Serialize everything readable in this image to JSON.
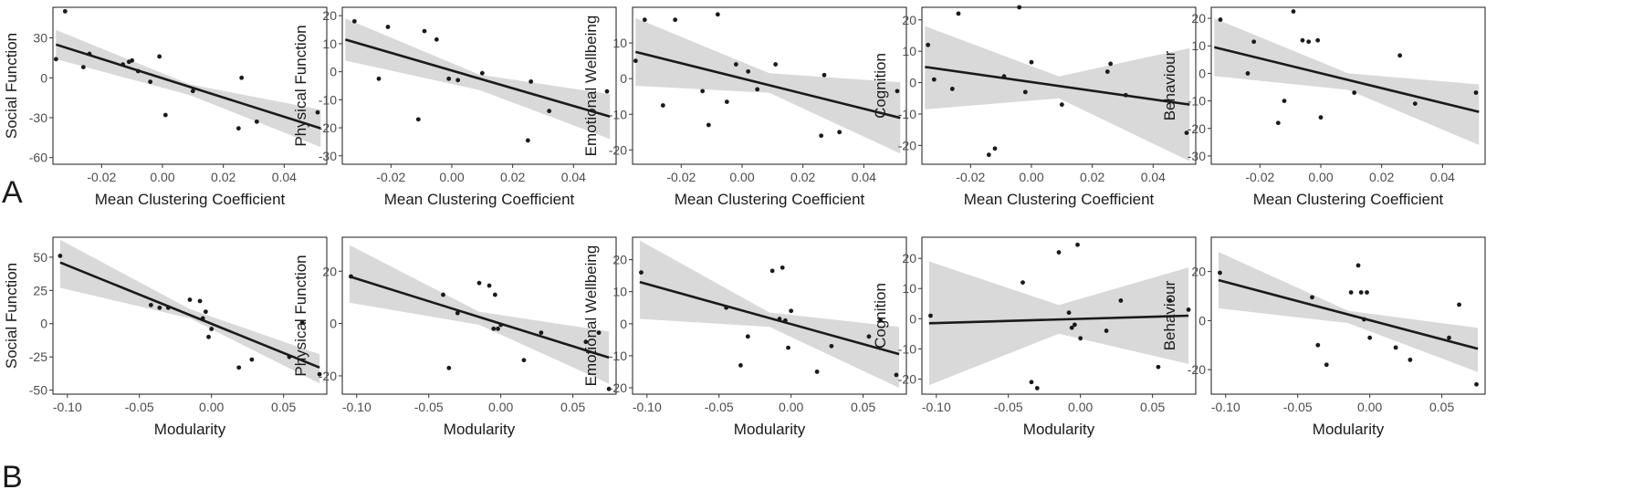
{
  "panel_labels": [
    "A",
    "B"
  ],
  "chart_data": [
    {
      "type": "scatter",
      "row": 0,
      "col": 0,
      "xlabel": "Mean Clustering Coefficient",
      "ylabel": "Social Function",
      "xlim": [
        -0.036,
        0.054
      ],
      "ylim": [
        -65,
        53
      ],
      "xticks": [
        -0.02,
        0,
        0.02,
        0.04
      ],
      "xtick_labels": [
        "-0.02",
        "0.00",
        "0.02",
        "0.04"
      ],
      "yticks": [
        -60,
        -30,
        0,
        30
      ],
      "ytick_labels": [
        "-60",
        "-30",
        "0",
        "30"
      ],
      "fit": {
        "x": [
          -0.035,
          0.052
        ],
        "y": [
          25,
          -38
        ]
      },
      "band": {
        "x": [
          -0.035,
          0.009,
          0.052
        ],
        "upper": [
          36,
          -5,
          -24
        ],
        "lower": [
          14,
          -13,
          -52
        ]
      },
      "points": {
        "x": [
          -0.035,
          -0.032,
          -0.026,
          -0.024,
          -0.013,
          -0.011,
          -0.01,
          -0.008,
          -0.004,
          -0.001,
          0.001,
          0.01,
          0.025,
          0.026,
          0.031,
          0.051
        ],
        "y": [
          14,
          50,
          8,
          18,
          10,
          12,
          13,
          5,
          -3,
          16,
          -28,
          -10,
          -38,
          0,
          -33,
          -26
        ]
      }
    },
    {
      "type": "scatter",
      "row": 0,
      "col": 1,
      "xlabel": "Mean Clustering Coefficient",
      "ylabel": "Physical Function",
      "xlim": [
        -0.036,
        0.054
      ],
      "ylim": [
        -33,
        23
      ],
      "xticks": [
        -0.02,
        0,
        0.02,
        0.04
      ],
      "xtick_labels": [
        "-0.02",
        "0.00",
        "0.02",
        "0.04"
      ],
      "yticks": [
        -30,
        -20,
        -10,
        0,
        10,
        20
      ],
      "ytick_labels": [
        "-30",
        "-20",
        "-10",
        "0",
        "10",
        "20"
      ],
      "fit": {
        "x": [
          -0.035,
          0.052
        ],
        "y": [
          11.5,
          -16
        ]
      },
      "band": {
        "x": [
          -0.035,
          0.009,
          0.052
        ],
        "upper": [
          19,
          -1,
          -8
        ],
        "lower": [
          4,
          -6.5,
          -24
        ]
      },
      "points": {
        "x": [
          -0.032,
          -0.024,
          -0.021,
          -0.011,
          -0.009,
          -0.005,
          -0.001,
          0.002,
          0.01,
          0.025,
          0.026,
          0.032,
          0.051
        ],
        "y": [
          18,
          -2.5,
          16,
          -17,
          14.5,
          11.5,
          -2.5,
          -3,
          -0.5,
          -24.5,
          -3.5,
          -14,
          -7
        ]
      }
    },
    {
      "type": "scatter",
      "row": 0,
      "col": 2,
      "xlabel": "Mean Clustering Coefficient",
      "ylabel": "Emotional Wellbeing",
      "xlim": [
        -0.036,
        0.054
      ],
      "ylim": [
        -24,
        20
      ],
      "xticks": [
        -0.02,
        0,
        0.02,
        0.04
      ],
      "xtick_labels": [
        "-0.02",
        "0.00",
        "0.02",
        "0.04"
      ],
      "yticks": [
        -20,
        -10,
        0,
        10
      ],
      "ytick_labels": [
        "-20",
        "-10",
        "0",
        "10"
      ],
      "fit": {
        "x": [
          -0.035,
          0.052
        ],
        "y": [
          7.5,
          -11
        ]
      },
      "band": {
        "x": [
          -0.035,
          0.009,
          0.052
        ],
        "upper": [
          17,
          1.5,
          -1
        ],
        "lower": [
          -2,
          -4,
          -21
        ]
      },
      "points": {
        "x": [
          -0.035,
          -0.032,
          -0.026,
          -0.022,
          -0.013,
          -0.011,
          -0.008,
          -0.005,
          -0.002,
          0.002,
          0.005,
          0.011,
          0.026,
          0.027,
          0.032,
          0.051
        ],
        "y": [
          5,
          16.5,
          -7.5,
          16.5,
          -3.5,
          -13,
          18,
          -6.5,
          4,
          2,
          -3,
          4,
          -16,
          1,
          -15,
          -3.5
        ]
      }
    },
    {
      "type": "scatter",
      "row": 0,
      "col": 3,
      "xlabel": "Mean Clustering Coefficient",
      "ylabel": "Cognition",
      "xlim": [
        -0.036,
        0.054
      ],
      "ylim": [
        -26,
        24
      ],
      "xticks": [
        -0.02,
        0,
        0.02,
        0.04
      ],
      "xtick_labels": [
        "-0.02",
        "0.00",
        "0.02",
        "0.04"
      ],
      "yticks": [
        -20,
        -10,
        0,
        10,
        20
      ],
      "ytick_labels": [
        "-20",
        "-10",
        "0",
        "10",
        "20"
      ],
      "fit": {
        "x": [
          -0.035,
          0.052
        ],
        "y": [
          5,
          -7
        ]
      },
      "band": {
        "x": [
          -0.035,
          0.009,
          0.052
        ],
        "upper": [
          18,
          2,
          11
        ],
        "lower": [
          -8.5,
          -5,
          -25
        ]
      },
      "points": {
        "x": [
          -0.034,
          -0.032,
          -0.026,
          -0.024,
          -0.014,
          -0.012,
          -0.009,
          -0.004,
          -0.002,
          0.0,
          0.01,
          0.025,
          0.026,
          0.031,
          0.051
        ],
        "y": [
          12,
          1,
          -2,
          22,
          -23,
          -21,
          2,
          24,
          -3,
          6.5,
          -7,
          3.5,
          6,
          -4,
          -16
        ]
      }
    },
    {
      "type": "scatter",
      "row": 0,
      "col": 4,
      "xlabel": "Mean Clustering Coefficient",
      "ylabel": "Behaviour",
      "xlim": [
        -0.036,
        0.054
      ],
      "ylim": [
        -33,
        24
      ],
      "xticks": [
        -0.02,
        0,
        0.02,
        0.04
      ],
      "xtick_labels": [
        "-0.02",
        "0.00",
        "0.02",
        "0.04"
      ],
      "yticks": [
        -30,
        -20,
        -10,
        0,
        10,
        20
      ],
      "ytick_labels": [
        "-30",
        "-20",
        "-10",
        "0",
        "10",
        "20"
      ],
      "fit": {
        "x": [
          -0.035,
          0.052
        ],
        "y": [
          9.5,
          -14
        ]
      },
      "band": {
        "x": [
          -0.035,
          0.009,
          0.052
        ],
        "upper": [
          20,
          0,
          -4
        ],
        "lower": [
          -1,
          -6,
          -26
        ]
      },
      "points": {
        "x": [
          -0.033,
          -0.024,
          -0.022,
          -0.014,
          -0.012,
          -0.009,
          -0.006,
          -0.004,
          -0.001,
          0.0,
          0.011,
          0.026,
          0.031,
          0.051
        ],
        "y": [
          19.5,
          0,
          11.5,
          -18,
          -10,
          22.5,
          12,
          11.5,
          12,
          -16,
          -7,
          6.5,
          -11,
          -7
        ]
      }
    },
    {
      "type": "scatter",
      "row": 1,
      "col": 0,
      "xlabel": "Modularity",
      "ylabel": "Social Function",
      "xlim": [
        -0.11,
        0.08
      ],
      "ylim": [
        -53,
        65
      ],
      "xticks": [
        -0.1,
        -0.05,
        0,
        0.05
      ],
      "xtick_labels": [
        "-0.10",
        "-0.05",
        "0.00",
        "0.05"
      ],
      "yticks": [
        -50,
        -25,
        0,
        25,
        50
      ],
      "ytick_labels": [
        "-50",
        "-25",
        "0",
        "25",
        "50"
      ],
      "fit": {
        "x": [
          -0.105,
          0.075
        ],
        "y": [
          46,
          -33
        ]
      },
      "band": {
        "x": [
          -0.105,
          -0.015,
          0.075
        ],
        "upper": [
          63,
          11,
          -23
        ],
        "lower": [
          27,
          4,
          -45
        ]
      },
      "points": {
        "x": [
          -0.105,
          -0.042,
          -0.036,
          -0.03,
          -0.015,
          -0.008,
          -0.006,
          -0.004,
          -0.002,
          0.0,
          0.019,
          0.028,
          0.054,
          0.063,
          0.075
        ],
        "y": [
          51,
          14,
          12,
          12,
          18,
          17,
          4,
          9,
          -10,
          -4,
          -33,
          -27,
          -25,
          1,
          -38
        ]
      }
    },
    {
      "type": "scatter",
      "row": 1,
      "col": 1,
      "xlabel": "Modularity",
      "ylabel": "Physical Function",
      "xlim": [
        -0.11,
        0.08
      ],
      "ylim": [
        -27,
        33
      ],
      "xticks": [
        -0.1,
        -0.05,
        0,
        0.05
      ],
      "xtick_labels": [
        "-0.10",
        "-0.05",
        "0.00",
        "0.05"
      ],
      "yticks": [
        -20,
        0,
        20
      ],
      "ytick_labels": [
        "-20",
        "0",
        "20"
      ],
      "fit": {
        "x": [
          -0.105,
          0.075
        ],
        "y": [
          18,
          -13
        ]
      },
      "band": {
        "x": [
          -0.105,
          -0.015,
          0.075
        ],
        "upper": [
          30,
          4.5,
          -3
        ],
        "lower": [
          8,
          -0.5,
          -23
        ]
      },
      "points": {
        "x": [
          -0.104,
          -0.04,
          -0.036,
          -0.03,
          -0.015,
          -0.008,
          -0.005,
          -0.004,
          -0.002,
          0.0,
          0.016,
          0.028,
          0.059,
          0.068,
          0.075
        ],
        "y": [
          18,
          11,
          -17,
          4,
          15.5,
          14.5,
          -2,
          11,
          -2,
          -0.5,
          -14,
          -3.5,
          -7,
          -3.5,
          -25
        ]
      }
    },
    {
      "type": "scatter",
      "row": 1,
      "col": 2,
      "xlabel": "Modularity",
      "ylabel": "Emotional Wellbeing",
      "xlim": [
        -0.11,
        0.08
      ],
      "ylim": [
        -22,
        27
      ],
      "xticks": [
        -0.1,
        -0.05,
        0,
        0.05
      ],
      "xtick_labels": [
        "-0.10",
        "-0.05",
        "0.00",
        "0.05"
      ],
      "yticks": [
        -20,
        -10,
        0,
        10,
        20
      ],
      "ytick_labels": [
        "-20",
        "-10",
        "0",
        "10",
        "20"
      ],
      "fit": {
        "x": [
          -0.105,
          0.075
        ],
        "y": [
          13,
          -9.5
        ]
      },
      "band": {
        "x": [
          -0.105,
          -0.015,
          0.075
        ],
        "upper": [
          26,
          3.5,
          -1
        ],
        "lower": [
          1.5,
          -1,
          -20
        ]
      },
      "points": {
        "x": [
          -0.104,
          -0.045,
          -0.035,
          -0.03,
          -0.013,
          -0.008,
          -0.006,
          -0.004,
          -0.002,
          0.0,
          0.018,
          0.028,
          0.054,
          0.062,
          0.073
        ],
        "y": [
          16,
          5,
          -13,
          -4,
          16.5,
          1.5,
          17.5,
          1,
          -7.5,
          4,
          -15,
          -7,
          -4,
          1,
          -16
        ]
      }
    },
    {
      "type": "scatter",
      "row": 1,
      "col": 3,
      "xlabel": "Modularity",
      "ylabel": "Cognition",
      "xlim": [
        -0.11,
        0.08
      ],
      "ylim": [
        -25,
        27
      ],
      "xticks": [
        -0.1,
        -0.05,
        0,
        0.05
      ],
      "xtick_labels": [
        "-0.10",
        "-0.05",
        "0.00",
        "0.05"
      ],
      "yticks": [
        -20,
        -10,
        0,
        10,
        20
      ],
      "ytick_labels": [
        "-20",
        "-10",
        "0",
        "10",
        "20"
      ],
      "fit": {
        "x": [
          -0.105,
          0.075
        ],
        "y": [
          -1.5,
          1
        ]
      },
      "band": {
        "x": [
          -0.105,
          -0.015,
          0.075
        ],
        "upper": [
          19,
          4.5,
          17
        ],
        "lower": [
          -22,
          -5,
          -15
        ]
      },
      "points": {
        "x": [
          -0.104,
          -0.04,
          -0.034,
          -0.03,
          -0.015,
          -0.008,
          -0.006,
          -0.004,
          -0.002,
          0.0,
          0.018,
          0.028,
          0.054,
          0.062,
          0.075
        ],
        "y": [
          1,
          12,
          -21,
          -23,
          22,
          2,
          -3,
          -2,
          24.5,
          -6.5,
          -4,
          6,
          -16,
          6,
          3
        ]
      }
    },
    {
      "type": "scatter",
      "row": 1,
      "col": 4,
      "xlabel": "Modularity",
      "ylabel": "Behaviour",
      "xlim": [
        -0.11,
        0.08
      ],
      "ylim": [
        -30,
        34
      ],
      "xticks": [
        -0.1,
        -0.05,
        0,
        0.05
      ],
      "xtick_labels": [
        "-0.10",
        "-0.05",
        "0.00",
        "0.05"
      ],
      "yticks": [
        -20,
        0,
        20
      ],
      "ytick_labels": [
        "-20",
        "0",
        "20"
      ],
      "fit": {
        "x": [
          -0.105,
          0.075
        ],
        "y": [
          16.5,
          -11.5
        ]
      },
      "band": {
        "x": [
          -0.105,
          -0.015,
          0.075
        ],
        "upper": [
          28,
          4,
          -3
        ],
        "lower": [
          5,
          -1,
          -21
        ]
      },
      "points": {
        "x": [
          -0.104,
          -0.04,
          -0.036,
          -0.03,
          -0.013,
          -0.008,
          -0.006,
          -0.004,
          -0.002,
          0.0,
          0.018,
          0.028,
          0.055,
          0.062,
          0.074
        ],
        "y": [
          19.5,
          9.5,
          -10,
          -18,
          11.5,
          22.5,
          11.5,
          0.5,
          11.5,
          -7,
          -11,
          -16,
          -7,
          6.5,
          -26
        ]
      }
    }
  ]
}
